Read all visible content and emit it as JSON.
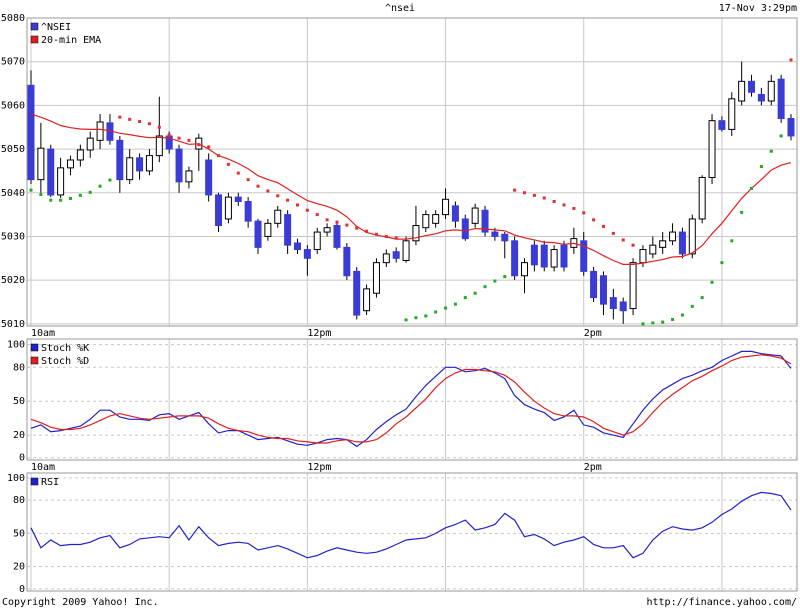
{
  "header": {
    "title": "^nsei",
    "timestamp": "17-Nov 3:29pm"
  },
  "footer": {
    "copyright": "Copyright 2009 Yahoo! Inc.",
    "url": "http://finance.yahoo.com/"
  },
  "chart_data": [
    {
      "type": "candlestick",
      "categories": [
        "10am",
        null,
        null,
        null,
        null,
        null,
        null,
        null,
        null,
        null,
        null,
        null,
        null,
        null,
        null,
        null,
        null,
        null,
        null,
        null,
        null,
        null,
        null,
        null,
        null,
        null,
        null,
        null,
        "12pm",
        null,
        null,
        null,
        null,
        null,
        null,
        null,
        null,
        null,
        null,
        null,
        null,
        null,
        null,
        null,
        null,
        null,
        null,
        null,
        null,
        null,
        null,
        null,
        null,
        null,
        null,
        null,
        "2pm",
        null,
        null,
        null,
        null,
        null,
        null,
        null,
        null,
        null,
        null,
        null,
        null,
        null,
        null,
        null,
        null,
        null,
        null,
        null,
        null,
        null
      ],
      "ylim": [
        5009.5,
        5080
      ],
      "yticks": [
        5010,
        5020,
        5030,
        5040,
        5050,
        5060,
        5070,
        5080
      ],
      "grid": "solid",
      "up_color": "#ffffff",
      "down_color": "#3b3bd6",
      "series": [
        {
          "name": "^NSEI",
          "color": "#3b3bd6",
          "open": [
            5064.6,
            5043,
            5050,
            5039.5,
            5045.7,
            5047.5,
            5049.8,
            5052,
            5056,
            5052,
            5043,
            5048,
            5045,
            5048.5,
            5053,
            5050,
            5042.5,
            5050,
            5047.5,
            5039.5,
            5034,
            5039,
            5038,
            5033.5,
            5030,
            5033,
            5035,
            5028.5,
            5027,
            5027,
            5031,
            5032.5,
            5027.5,
            5022,
            5013,
            5017,
            5024,
            5026.5,
            5024.5,
            5029,
            5032,
            5033,
            5035,
            5037,
            5034,
            5033,
            5036,
            5031,
            5030.5,
            5029,
            5021,
            5028,
            5028,
            5023,
            5028,
            5027.5,
            5029,
            5022,
            5021,
            5016,
            5015,
            5013.5,
            5024,
            5026,
            5027.5,
            5029,
            5031,
            5026,
            5034,
            5043.5,
            5056.5,
            5054.5,
            5061,
            5065.5,
            5062.5,
            5061,
            5066,
            5057
          ],
          "high": [
            5068,
            5056,
            5051,
            5048,
            5048.5,
            5051,
            5054,
            5058,
            5058,
            5053,
            5050,
            5049,
            5050,
            5062,
            5054,
            5051,
            5046,
            5053.5,
            5049,
            5040,
            5040,
            5040,
            5039,
            5034,
            5034,
            5037,
            5036,
            5029.5,
            5028,
            5032,
            5033,
            5033,
            5028.5,
            5023,
            5019,
            5025,
            5027,
            5027.5,
            5030,
            5037,
            5036,
            5036,
            5041,
            5038,
            5035,
            5037.5,
            5037,
            5032,
            5031,
            5030,
            5025,
            5029,
            5029,
            5028,
            5029,
            5032,
            5031,
            5023,
            5022,
            5018,
            5016,
            5025,
            5028,
            5030,
            5031,
            5033,
            5032,
            5035,
            5044,
            5058,
            5057.5,
            5063,
            5070,
            5067,
            5064,
            5067,
            5067,
            5058
          ],
          "low": [
            5042,
            5040,
            5039,
            5038.8,
            5044,
            5046,
            5048,
            5050,
            5051,
            5040,
            5042,
            5043,
            5044,
            5047,
            5049,
            5040,
            5041,
            5045,
            5038,
            5031,
            5033,
            5037,
            5032,
            5026,
            5029,
            5032,
            5026,
            5026,
            5021,
            5026,
            5030,
            5027,
            5020,
            5011,
            5012,
            5016,
            5023,
            5024,
            5024,
            5028,
            5031,
            5032,
            5034,
            5032,
            5029,
            5032,
            5030,
            5029,
            5025,
            5020,
            5017,
            5022,
            5022,
            5022,
            5022,
            5026,
            5021,
            5015,
            5012,
            5011,
            5010,
            5012,
            5023,
            5025,
            5026,
            5028,
            5025,
            5025,
            5033,
            5042,
            5054,
            5053,
            5060,
            5062,
            5060,
            5060,
            5056,
            5052
          ],
          "close": [
            5043,
            5050.2,
            5039.5,
            5045.7,
            5047.5,
            5049.8,
            5052.5,
            5056.2,
            5052,
            5043,
            5048,
            5045,
            5048.5,
            5053,
            5050,
            5042.5,
            5045,
            5052.5,
            5039.5,
            5032.5,
            5039,
            5038,
            5033.5,
            5027.5,
            5033,
            5036,
            5028,
            5027,
            5025,
            5031,
            5032,
            5027.5,
            5021,
            5012,
            5018,
            5024,
            5026,
            5025,
            5029,
            5032.5,
            5035,
            5035,
            5038.5,
            5033.5,
            5029.5,
            5036.5,
            5031,
            5030,
            5029,
            5021,
            5024,
            5023.5,
            5023,
            5027,
            5023,
            5029.5,
            5022,
            5016,
            5014.5,
            5013.5,
            5013,
            5024,
            5027,
            5028,
            5029,
            5031,
            5026,
            5034,
            5043.5,
            5056.5,
            5054.5,
            5061.5,
            5065.5,
            5063,
            5061,
            5065.5,
            5057,
            5053
          ]
        },
        {
          "name": "20-min EMA",
          "color": "#e02020",
          "values": [
            5058,
            5057.3,
            5056.4,
            5055.4,
            5054.9,
            5054.6,
            5054.5,
            5054.5,
            5054.2,
            5053.6,
            5053.3,
            5052.9,
            5052.6,
            5052.7,
            5052.5,
            5051.8,
            5051.1,
            5051.2,
            5050,
            5048.5,
            5047.7,
            5046.7,
            5045.5,
            5043.9,
            5043,
            5042.3,
            5040.9,
            5039.5,
            5038.2,
            5037.5,
            5036.9,
            5036,
            5034.5,
            5032.3,
            5030.9,
            5030.3,
            5029.9,
            5029.4,
            5029.4,
            5029.7,
            5030.2,
            5030.6,
            5031.3,
            5031.5,
            5031.3,
            5031.8,
            5031.7,
            5031.5,
            5031.3,
            5030.3,
            5029.7,
            5029.2,
            5028.7,
            5028.6,
            5028.2,
            5028.4,
            5027.8,
            5026.8,
            5025.6,
            5024.5,
            5023.6,
            5023.6,
            5023.9,
            5024.3,
            5024.7,
            5025.3,
            5025.4,
            5026.2,
            5027.9,
            5030.6,
            5033,
            5035.9,
            5038.7,
            5041,
            5043,
            5045.2,
            5046.3,
            5046.9
          ]
        }
      ],
      "sar": {
        "color_below": "#22aa22",
        "color_above": "#e03030",
        "values": [
          5040.6,
          5039.6,
          5038.3,
          5038.3,
          5038.7,
          5039.4,
          5040.1,
          5041.5,
          5042.9,
          5057.3,
          5056.8,
          5056.3,
          5055.8,
          5055,
          5053.2,
          5052.5,
          5052,
          5051,
          5050.5,
          5048.5,
          5046.5,
          5044.5,
          5043,
          5041.5,
          5040.4,
          5039.3,
          5038.3,
          5037.2,
          5036,
          5035,
          5033.8,
          5033.3,
          5032.6,
          5031.9,
          5031.2,
          5030.5,
          5030,
          5029.7,
          5010.9,
          5011.4,
          5011.8,
          5012.7,
          5013.6,
          5014.5,
          5016,
          5017,
          5018.5,
          5019.8,
          5020.8,
          5040.6,
          5040,
          5039.4,
          5038.8,
          5038,
          5037.2,
          5036.4,
          5035.4,
          5033.8,
          5032.3,
          5030.7,
          5029.2,
          5028,
          5010,
          5010.2,
          5010.4,
          5011,
          5012,
          5014,
          5016,
          5019.5,
          5024,
          5029,
          5035.5,
          5041,
          5046,
          5049.5,
          5053,
          5070.4
        ]
      }
    },
    {
      "type": "line",
      "ylim": [
        -2,
        105
      ],
      "yticks": [
        0,
        20,
        50,
        80,
        100
      ],
      "grid": "dashed",
      "series": [
        {
          "name": "Stoch %K",
          "color": "#2222cc",
          "values": [
            26,
            29,
            23,
            24,
            26,
            28,
            34,
            42,
            42,
            36,
            34,
            34,
            33,
            38,
            39,
            34,
            37,
            40,
            30,
            22,
            24,
            24,
            20,
            16,
            17,
            18,
            15,
            12,
            11,
            13,
            16,
            17,
            16,
            10,
            16,
            25,
            32,
            38,
            43,
            54,
            64,
            72,
            80,
            80,
            76,
            77,
            79,
            75,
            70,
            55,
            47,
            43,
            40,
            33,
            36,
            42,
            29,
            27,
            22,
            20,
            18,
            30,
            42,
            52,
            60,
            65,
            70,
            73,
            77,
            80,
            86,
            90,
            94,
            94,
            92,
            91,
            90,
            79
          ]
        },
        {
          "name": "Stoch %D",
          "color": "#e02020",
          "values": [
            34,
            31,
            27,
            25,
            25,
            26,
            29,
            33,
            37,
            39,
            37,
            35,
            34,
            35,
            36,
            37,
            37,
            37,
            35,
            30,
            26,
            24,
            23,
            20,
            18,
            17,
            17,
            15,
            14,
            13,
            13,
            15,
            16,
            14,
            14,
            16,
            22,
            30,
            36,
            44,
            52,
            62,
            70,
            75,
            78,
            78,
            77,
            76,
            73,
            67,
            58,
            50,
            44,
            39,
            37,
            37,
            36,
            32,
            26,
            23,
            20,
            23,
            30,
            40,
            49,
            56,
            62,
            68,
            72,
            77,
            81,
            86,
            89,
            90,
            91,
            90,
            88,
            83
          ]
        }
      ]
    },
    {
      "type": "line",
      "ylim": [
        -2,
        104.5
      ],
      "yticks": [
        0,
        20,
        50,
        80,
        100
      ],
      "grid": "dashed",
      "series": [
        {
          "name": "RSI",
          "color": "#2222cc",
          "values": [
            55,
            37,
            44,
            39,
            40,
            40,
            42,
            46,
            48,
            37,
            40,
            45,
            46,
            47,
            46,
            57,
            44,
            56,
            46,
            39,
            41,
            42,
            41,
            35,
            37,
            39,
            36,
            32,
            28,
            30,
            34,
            37,
            35,
            33,
            32,
            33,
            36,
            40,
            44,
            45,
            46,
            50,
            55,
            58,
            62,
            53,
            55,
            58,
            68,
            62,
            47,
            49,
            45,
            39,
            42,
            44,
            47,
            40,
            37,
            37,
            39,
            28,
            32,
            44,
            52,
            56,
            54,
            53,
            55,
            60,
            67,
            72,
            79,
            84,
            87,
            86,
            84,
            71
          ]
        }
      ]
    }
  ]
}
